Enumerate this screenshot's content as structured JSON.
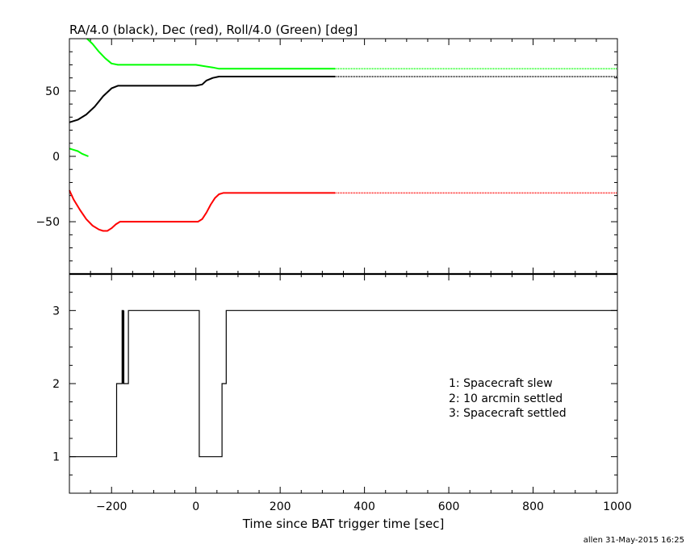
{
  "chart_data": [
    {
      "type": "line",
      "title": "RA/4.0 (black), Dec (red), Roll/4.0 (Green) [deg]",
      "xlim": [
        -300,
        1000
      ],
      "ylim": [
        -90,
        90
      ],
      "x_ticks": [
        -200,
        0,
        200,
        400,
        600,
        800,
        1000
      ],
      "y_ticks": [
        -50,
        0,
        50
      ],
      "series": [
        {
          "name": "RA/4.0",
          "color": "#000000",
          "x": [
            -300,
            -280,
            -260,
            -240,
            -220,
            -200,
            -185,
            -170,
            -150,
            -100,
            -50,
            0,
            15,
            25,
            40,
            55,
            70,
            150,
            250,
            330
          ],
          "y": [
            26,
            28,
            32,
            38,
            46,
            52,
            54,
            54,
            54,
            54,
            54,
            54,
            55,
            58,
            60,
            61,
            61,
            61,
            61,
            61
          ],
          "dotted_from_x": 330,
          "dotted_to_x": 1000,
          "dotted_y": 61
        },
        {
          "name": "Dec",
          "color": "#ff0000",
          "x": [
            -300,
            -290,
            -275,
            -260,
            -245,
            -230,
            -220,
            -210,
            -200,
            -190,
            -180,
            -170,
            -100,
            -20,
            5,
            15,
            25,
            35,
            45,
            55,
            65,
            80,
            150,
            250,
            330
          ],
          "y": [
            -26,
            -33,
            -41,
            -48,
            -53,
            -56,
            -57,
            -57,
            -55,
            -52,
            -50,
            -50,
            -50,
            -50,
            -50,
            -48,
            -43,
            -37,
            -32,
            -29,
            -28,
            -28,
            -28,
            -28,
            -28
          ],
          "dotted_from_x": 330,
          "dotted_to_x": 1000,
          "dotted_y": -28
        },
        {
          "name": "Roll/4.0",
          "color": "#00ff00",
          "segments": [
            {
              "x": [
                -300,
                -290,
                -280,
                -270,
                -255
              ],
              "y": [
                6,
                5,
                4,
                2,
                0
              ]
            },
            {
              "x": [
                -258,
                -245,
                -230,
                -215,
                -200,
                -185,
                -170,
                -100,
                0,
                20,
                40,
                55,
                80,
                150,
                250,
                330
              ],
              "y": [
                90,
                86,
                80,
                75,
                71,
                70,
                70,
                70,
                70,
                69,
                68,
                67,
                67,
                67,
                67,
                67
              ]
            }
          ],
          "dotted_from_x": 330,
          "dotted_to_x": 1000,
          "dotted_y": 67
        }
      ]
    },
    {
      "type": "line",
      "step": true,
      "xlabel": "Time since BAT trigger time [sec]",
      "xlim": [
        -300,
        1000
      ],
      "ylim": [
        0.5,
        3.5
      ],
      "x_ticks": [
        -200,
        0,
        200,
        400,
        600,
        800,
        1000
      ],
      "y_ticks": [
        1,
        2,
        3
      ],
      "series": [
        {
          "color": "#000000",
          "x": [
            -300,
            -188,
            -188,
            -175,
            -175,
            -172,
            -172,
            -168,
            -168,
            -160,
            -160,
            8,
            8,
            62,
            62,
            72,
            72,
            1000
          ],
          "y": [
            1,
            1,
            2,
            2,
            3,
            3,
            2,
            2,
            2,
            2,
            3,
            3,
            1,
            1,
            2,
            2,
            3,
            3
          ]
        }
      ],
      "legend": [
        "1: Spacecraft slew",
        "2: 10 arcmin settled",
        "3: Spacecraft settled"
      ]
    }
  ],
  "footer": "allen 31-May-2015 16:25"
}
